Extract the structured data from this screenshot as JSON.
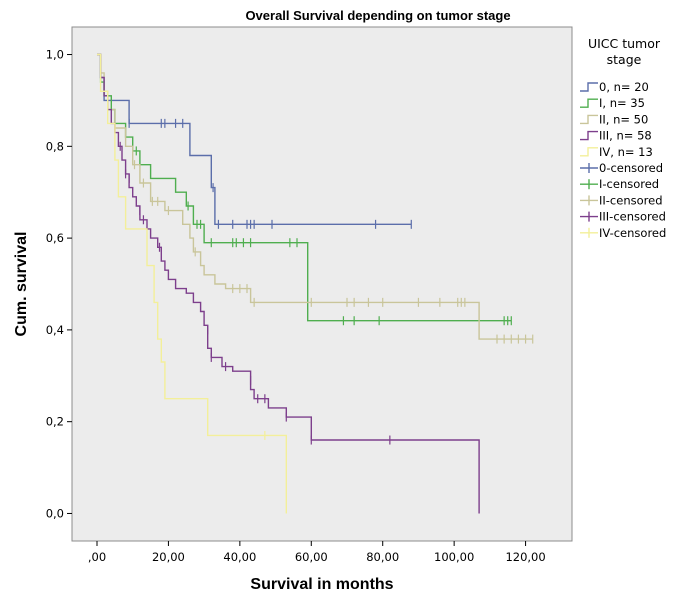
{
  "chart_data": {
    "type": "line",
    "title": "Overall Survival depending on tumor stage",
    "xlabel": "Survival in months",
    "ylabel": "Cum. survival",
    "xlim": [
      -7,
      133
    ],
    "ylim": [
      -0.06,
      1.06
    ],
    "x_ticks": [
      0,
      20,
      40,
      60,
      80,
      100,
      120
    ],
    "x_tick_labels": [
      ",00",
      "20,00",
      "40,00",
      "60,00",
      "80,00",
      "100,00",
      "120,00"
    ],
    "y_ticks": [
      0,
      0.2,
      0.4,
      0.6,
      0.8,
      1.0
    ],
    "y_tick_labels": [
      "0,0",
      "0,2",
      "0,4",
      "0,6",
      "0,8",
      "1,0"
    ],
    "grid": false,
    "legend": {
      "title_lines": [
        "UICC tumor",
        "stage"
      ],
      "placement": "right",
      "entries": [
        {
          "label": "0, n= 20",
          "kind": "line",
          "color": "#5b6eaa"
        },
        {
          "label": "I, n= 35",
          "kind": "line",
          "color": "#4fae4f"
        },
        {
          "label": "II, n= 50",
          "kind": "line",
          "color": "#c9c59a"
        },
        {
          "label": "III, n= 58",
          "kind": "line",
          "color": "#7d3f8c"
        },
        {
          "label": "IV, n= 13",
          "kind": "line",
          "color": "#f3ef9a"
        },
        {
          "label": "0-censored",
          "kind": "censor",
          "color": "#5b6eaa"
        },
        {
          "label": "I-censored",
          "kind": "censor",
          "color": "#4fae4f"
        },
        {
          "label": "II-censored",
          "kind": "censor",
          "color": "#c9c59a"
        },
        {
          "label": "III-censored",
          "kind": "censor",
          "color": "#7d3f8c"
        },
        {
          "label": "IV-censored",
          "kind": "censor",
          "color": "#f3ef9a"
        }
      ]
    },
    "series": [
      {
        "name": "0, n= 20",
        "color": "#5b6eaa",
        "steps": [
          [
            0,
            1.0
          ],
          [
            1,
            0.95
          ],
          [
            2,
            0.9
          ],
          [
            9,
            0.85
          ],
          [
            26,
            0.78
          ],
          [
            32,
            0.71
          ],
          [
            33,
            0.63
          ],
          [
            88,
            0.63
          ]
        ],
        "censored": [
          [
            9,
            0.85
          ],
          [
            18,
            0.85
          ],
          [
            19,
            0.85
          ],
          [
            22,
            0.85
          ],
          [
            24,
            0.85
          ],
          [
            32.5,
            0.71
          ],
          [
            34,
            0.63
          ],
          [
            38,
            0.63
          ],
          [
            42,
            0.63
          ],
          [
            43,
            0.63
          ],
          [
            44,
            0.63
          ],
          [
            49,
            0.63
          ],
          [
            78,
            0.63
          ],
          [
            88,
            0.63
          ]
        ]
      },
      {
        "name": "I, n= 35",
        "color": "#4fae4f",
        "steps": [
          [
            0,
            1.0
          ],
          [
            1,
            0.94
          ],
          [
            2,
            0.91
          ],
          [
            4,
            0.88
          ],
          [
            5,
            0.85
          ],
          [
            8,
            0.82
          ],
          [
            10,
            0.79
          ],
          [
            12,
            0.76
          ],
          [
            15,
            0.73
          ],
          [
            22,
            0.7
          ],
          [
            25,
            0.67
          ],
          [
            27,
            0.63
          ],
          [
            30,
            0.59
          ],
          [
            59,
            0.42
          ],
          [
            116,
            0.42
          ]
        ],
        "censored": [
          [
            11,
            0.79
          ],
          [
            25.5,
            0.67
          ],
          [
            28,
            0.63
          ],
          [
            29,
            0.63
          ],
          [
            32,
            0.59
          ],
          [
            38,
            0.59
          ],
          [
            39,
            0.59
          ],
          [
            41,
            0.59
          ],
          [
            43,
            0.59
          ],
          [
            54,
            0.59
          ],
          [
            56,
            0.59
          ],
          [
            69,
            0.42
          ],
          [
            72,
            0.42
          ],
          [
            79,
            0.42
          ],
          [
            114,
            0.42
          ],
          [
            115,
            0.42
          ],
          [
            116,
            0.42
          ]
        ]
      },
      {
        "name": "II, n= 50",
        "color": "#c9c59a",
        "steps": [
          [
            0,
            1.0
          ],
          [
            1,
            0.96
          ],
          [
            2,
            0.92
          ],
          [
            3,
            0.88
          ],
          [
            5,
            0.84
          ],
          [
            8,
            0.8
          ],
          [
            10,
            0.76
          ],
          [
            12,
            0.72
          ],
          [
            15,
            0.68
          ],
          [
            19,
            0.66
          ],
          [
            24,
            0.63
          ],
          [
            26,
            0.6
          ],
          [
            27,
            0.57
          ],
          [
            29,
            0.54
          ],
          [
            30,
            0.52
          ],
          [
            33,
            0.5
          ],
          [
            36,
            0.49
          ],
          [
            43,
            0.46
          ],
          [
            107,
            0.38
          ],
          [
            122,
            0.38
          ]
        ],
        "censored": [
          [
            2,
            0.92
          ],
          [
            10.5,
            0.76
          ],
          [
            13,
            0.72
          ],
          [
            15.5,
            0.68
          ],
          [
            17,
            0.68
          ],
          [
            20,
            0.66
          ],
          [
            27.5,
            0.57
          ],
          [
            38,
            0.49
          ],
          [
            40,
            0.49
          ],
          [
            42,
            0.49
          ],
          [
            44,
            0.46
          ],
          [
            60,
            0.46
          ],
          [
            70,
            0.46
          ],
          [
            72,
            0.46
          ],
          [
            76,
            0.46
          ],
          [
            80,
            0.46
          ],
          [
            90,
            0.46
          ],
          [
            96,
            0.46
          ],
          [
            101,
            0.46
          ],
          [
            102,
            0.46
          ],
          [
            103,
            0.46
          ],
          [
            112,
            0.38
          ],
          [
            114,
            0.38
          ],
          [
            116,
            0.38
          ],
          [
            118,
            0.38
          ],
          [
            120,
            0.38
          ],
          [
            122,
            0.38
          ]
        ]
      },
      {
        "name": "III, n= 58",
        "color": "#7d3f8c",
        "steps": [
          [
            0,
            1.0
          ],
          [
            1,
            0.95
          ],
          [
            2,
            0.91
          ],
          [
            3,
            0.88
          ],
          [
            4,
            0.85
          ],
          [
            5,
            0.83
          ],
          [
            6,
            0.8
          ],
          [
            7,
            0.77
          ],
          [
            8,
            0.74
          ],
          [
            9,
            0.71
          ],
          [
            10,
            0.69
          ],
          [
            11,
            0.67
          ],
          [
            12,
            0.64
          ],
          [
            14,
            0.62
          ],
          [
            15,
            0.6
          ],
          [
            17,
            0.58
          ],
          [
            18,
            0.55
          ],
          [
            19,
            0.53
          ],
          [
            20,
            0.51
          ],
          [
            22,
            0.49
          ],
          [
            25,
            0.48
          ],
          [
            27,
            0.46
          ],
          [
            29,
            0.44
          ],
          [
            30,
            0.41
          ],
          [
            31,
            0.36
          ],
          [
            32,
            0.34
          ],
          [
            35,
            0.32
          ],
          [
            38,
            0.31
          ],
          [
            43,
            0.27
          ],
          [
            44,
            0.25
          ],
          [
            48,
            0.23
          ],
          [
            53,
            0.21
          ],
          [
            60,
            0.16
          ],
          [
            107,
            0.0
          ]
        ],
        "censored": [
          [
            6.5,
            0.8
          ],
          [
            8,
            0.74
          ],
          [
            9,
            0.73
          ],
          [
            12,
            0.66
          ],
          [
            13,
            0.64
          ],
          [
            17.5,
            0.58
          ],
          [
            31,
            0.4
          ],
          [
            32,
            0.34
          ],
          [
            36,
            0.32
          ],
          [
            43,
            0.29
          ],
          [
            45,
            0.25
          ],
          [
            47,
            0.25
          ],
          [
            53,
            0.21
          ],
          [
            60,
            0.16
          ],
          [
            82,
            0.16
          ]
        ]
      },
      {
        "name": "IV, n= 13",
        "color": "#f3ef9a",
        "steps": [
          [
            0,
            1.0
          ],
          [
            1,
            0.92
          ],
          [
            3,
            0.85
          ],
          [
            5,
            0.77
          ],
          [
            6,
            0.69
          ],
          [
            8,
            0.62
          ],
          [
            14,
            0.54
          ],
          [
            16,
            0.46
          ],
          [
            17,
            0.38
          ],
          [
            18,
            0.33
          ],
          [
            19,
            0.25
          ],
          [
            31,
            0.17
          ],
          [
            53,
            0.0
          ]
        ],
        "censored": [
          [
            47,
            0.17
          ]
        ]
      }
    ]
  }
}
